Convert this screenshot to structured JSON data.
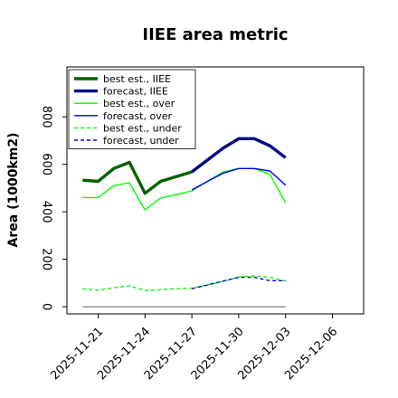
{
  "chart_data": {
    "type": "line",
    "title": "IIEE area metric",
    "xlabel": "",
    "ylabel": "Area (1000km2)",
    "ylim": [
      -30,
      1010
    ],
    "xlim": [
      "2025-11-19",
      "2025-12-08"
    ],
    "x_ticks": [
      "2025-11-21",
      "2025-11-24",
      "2025-11-27",
      "2025-11-30",
      "2025-12-03",
      "2025-12-06"
    ],
    "x_tick_colors": [
      "#000000",
      "#000000",
      "#2e8b22",
      "#000000",
      "#000000",
      "#000000"
    ],
    "y_ticks": [
      0,
      200,
      400,
      600,
      800
    ],
    "grid": false,
    "legend_position": "top-left",
    "series": [
      {
        "name": "best est., IIEE",
        "color": "#006400",
        "style": "solid",
        "weight": "thick",
        "x": [
          "2025-11-20",
          "2025-11-21",
          "2025-11-22",
          "2025-11-23",
          "2025-11-24",
          "2025-11-25",
          "2025-11-26",
          "2025-11-27"
        ],
        "y": [
          533,
          528,
          582,
          608,
          478,
          528,
          548,
          568
        ]
      },
      {
        "name": "forecast, IIEE",
        "color": "#00008b",
        "style": "solid",
        "weight": "thick",
        "x": [
          "2025-11-27",
          "2025-11-28",
          "2025-11-29",
          "2025-11-30",
          "2025-12-01",
          "2025-12-02",
          "2025-12-03"
        ],
        "y": [
          568,
          618,
          668,
          708,
          708,
          678,
          628
        ]
      },
      {
        "name": "best est., over",
        "color": "#00ff00",
        "style": "solid",
        "weight": "thin",
        "x": [
          "2025-11-20",
          "2025-11-21",
          "2025-11-22",
          "2025-11-23",
          "2025-11-24",
          "2025-11-25",
          "2025-11-26",
          "2025-11-27",
          "2025-11-28",
          "2025-11-29",
          "2025-11-30",
          "2025-12-01",
          "2025-12-02",
          "2025-12-03"
        ],
        "y": [
          460,
          460,
          510,
          522,
          408,
          458,
          472,
          488,
          528,
          568,
          582,
          582,
          558,
          438
        ]
      },
      {
        "name": "forecast, over",
        "color": "#0000ff",
        "style": "solid",
        "weight": "thin",
        "x": [
          "2025-11-27",
          "2025-11-28",
          "2025-11-29",
          "2025-11-30",
          "2025-12-01",
          "2025-12-02",
          "2025-12-03"
        ],
        "y": [
          492,
          528,
          562,
          582,
          582,
          572,
          512
        ]
      },
      {
        "name": "best est., under",
        "color": "#00ff00",
        "style": "dashed",
        "weight": "thin",
        "x": [
          "2025-11-20",
          "2025-11-21",
          "2025-11-22",
          "2025-11-23",
          "2025-11-24",
          "2025-11-25",
          "2025-11-26",
          "2025-11-27",
          "2025-11-28",
          "2025-11-29",
          "2025-11-30",
          "2025-12-01",
          "2025-12-02",
          "2025-12-03"
        ],
        "y": [
          75,
          70,
          80,
          88,
          68,
          72,
          76,
          78,
          92,
          106,
          126,
          130,
          124,
          108
        ]
      },
      {
        "name": "forecast, under",
        "color": "#0000ff",
        "style": "dashed",
        "weight": "thin",
        "x": [
          "2025-11-27",
          "2025-11-28",
          "2025-11-29",
          "2025-11-30",
          "2025-12-01",
          "2025-12-02",
          "2025-12-03"
        ],
        "y": [
          76,
          92,
          108,
          124,
          124,
          110,
          110
        ]
      }
    ],
    "reference_line": {
      "color": "#808080",
      "x": [
        "2025-11-20",
        "2025-12-03"
      ],
      "y": [
        0,
        0
      ]
    }
  }
}
